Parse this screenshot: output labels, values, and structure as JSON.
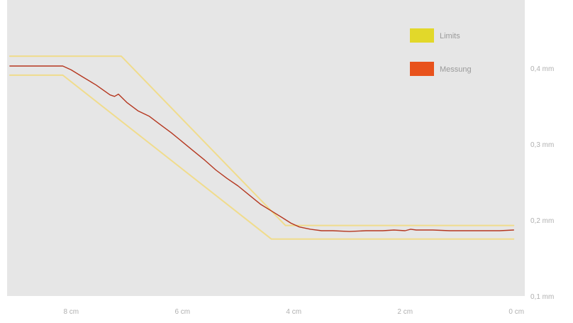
{
  "chart_data": {
    "type": "line",
    "title": "",
    "xlabel": "",
    "ylabel": "",
    "x_reversed": true,
    "xlim": [
      9.15,
      -0.15
    ],
    "ylim": [
      0.1,
      0.49
    ],
    "x_ticks": [
      {
        "value": 8,
        "label": "8 cm"
      },
      {
        "value": 6,
        "label": "6 cm"
      },
      {
        "value": 4,
        "label": "4 cm"
      },
      {
        "value": 2,
        "label": "2 cm"
      },
      {
        "value": 0,
        "label": "0 cm"
      }
    ],
    "y_ticks": [
      {
        "value": 0.4,
        "label": "0,4 mm"
      },
      {
        "value": 0.3,
        "label": "0,3 mm"
      },
      {
        "value": 0.2,
        "label": "0,2 mm"
      },
      {
        "value": 0.1,
        "label": "0,1 mm"
      }
    ],
    "grid": false,
    "legend_position": "top-right",
    "legend": [
      {
        "label": "Limits",
        "color": "#e2d82a"
      },
      {
        "label": "Messung",
        "color": "#e8521c"
      }
    ],
    "series": [
      {
        "name": "Limits",
        "color": "#f0dc8c",
        "x": [
          9.1,
          7.1,
          4.15,
          0.05
        ],
        "values": [
          0.416,
          0.416,
          0.193,
          0.193
        ]
      },
      {
        "name": "Limits",
        "color": "#f0dc8c",
        "x": [
          9.1,
          8.15,
          4.4,
          0.05
        ],
        "values": [
          0.391,
          0.391,
          0.175,
          0.175
        ]
      },
      {
        "name": "Messung",
        "color": "#b5371f",
        "x": [
          9.1,
          8.6,
          8.15,
          8.0,
          7.8,
          7.55,
          7.3,
          7.22,
          7.15,
          7.0,
          6.8,
          6.6,
          6.4,
          6.2,
          6.0,
          5.8,
          5.6,
          5.4,
          5.2,
          5.0,
          4.8,
          4.6,
          4.4,
          4.2,
          4.05,
          3.9,
          3.7,
          3.5,
          3.3,
          3.0,
          2.7,
          2.4,
          2.2,
          2.0,
          1.9,
          1.8,
          1.5,
          1.2,
          0.9,
          0.6,
          0.3,
          0.05
        ],
        "values": [
          0.403,
          0.403,
          0.403,
          0.398,
          0.389,
          0.378,
          0.365,
          0.363,
          0.366,
          0.355,
          0.344,
          0.337,
          0.326,
          0.315,
          0.303,
          0.291,
          0.279,
          0.266,
          0.255,
          0.245,
          0.233,
          0.221,
          0.212,
          0.203,
          0.196,
          0.191,
          0.188,
          0.186,
          0.186,
          0.185,
          0.186,
          0.186,
          0.187,
          0.186,
          0.188,
          0.187,
          0.187,
          0.186,
          0.186,
          0.186,
          0.186,
          0.187
        ]
      }
    ]
  }
}
